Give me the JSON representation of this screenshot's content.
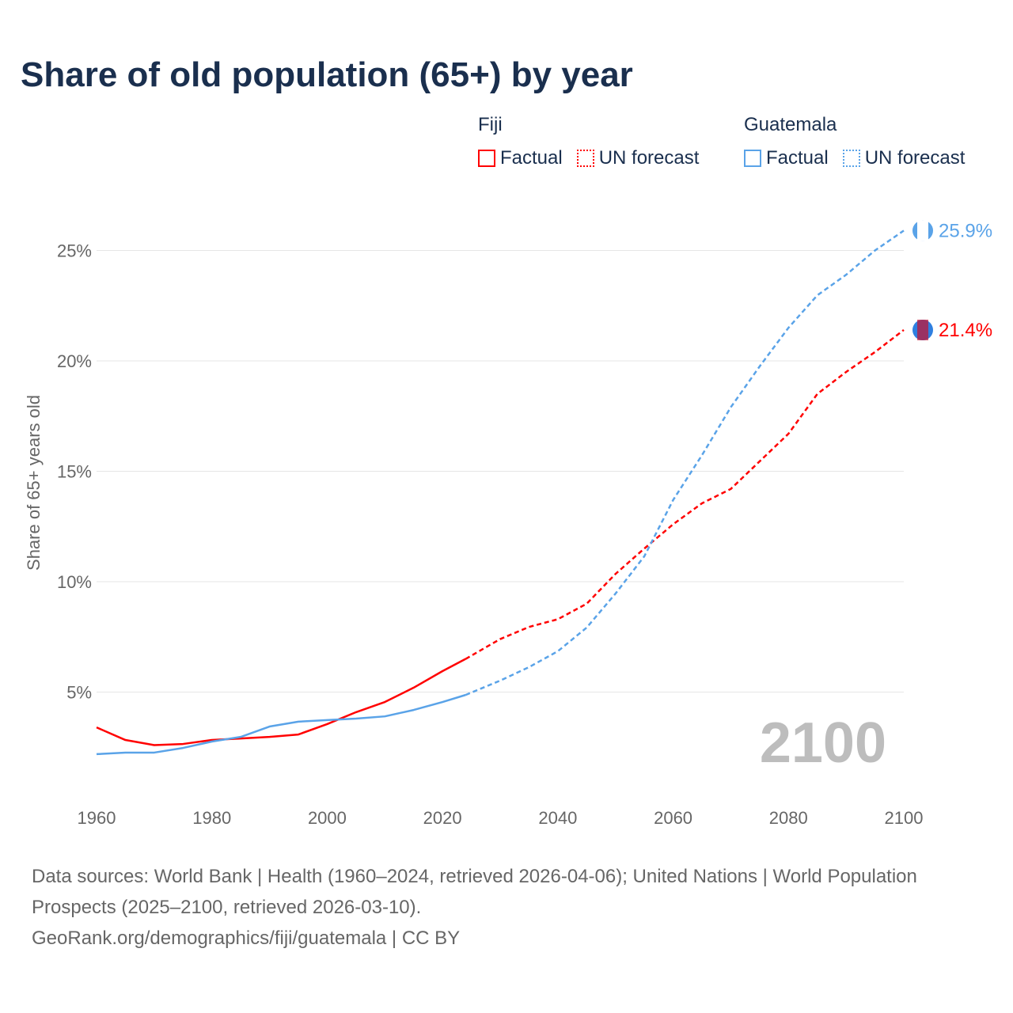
{
  "title": "Share of old population (65+) by year",
  "legend": [
    {
      "country": "Fiji",
      "color": "#ff0000",
      "factual_label": "Factual",
      "forecast_label": "UN forecast"
    },
    {
      "country": "Guatemala",
      "color": "#5aa3e8",
      "factual_label": "Factual",
      "forecast_label": "UN forecast"
    }
  ],
  "chart_data": {
    "type": "line",
    "title": "Share of old population (65+) by year",
    "xlabel": "",
    "ylabel": "Share of 65+ years old",
    "xlim": [
      1960,
      2100
    ],
    "ylim": [
      0,
      27
    ],
    "x_ticks": [
      "1960",
      "1980",
      "2000",
      "2020",
      "2040",
      "2060",
      "2080",
      "2100"
    ],
    "y_ticks": [
      "5%",
      "10%",
      "15%",
      "20%",
      "25%"
    ],
    "grid": "horizontal",
    "year_watermark": "2100",
    "forecast_start": 2024,
    "x": [
      1960,
      1965,
      1970,
      1975,
      1980,
      1985,
      1990,
      1995,
      2000,
      2005,
      2010,
      2015,
      2020,
      2024,
      2030,
      2035,
      2040,
      2045,
      2050,
      2055,
      2060,
      2065,
      2070,
      2075,
      2080,
      2085,
      2090,
      2095,
      2100
    ],
    "series": [
      {
        "name": "Fiji",
        "color": "#ff0000",
        "end_label": "21.4%",
        "values": [
          3.4,
          2.83,
          2.6,
          2.65,
          2.83,
          2.9,
          2.97,
          3.08,
          3.55,
          4.09,
          4.55,
          5.2,
          5.95,
          6.5,
          7.4,
          7.95,
          8.3,
          9.0,
          10.35,
          11.5,
          12.6,
          13.55,
          14.2,
          15.45,
          16.7,
          18.5,
          19.5,
          20.4,
          21.4
        ]
      },
      {
        "name": "Guatemala",
        "color": "#5aa3e8",
        "end_label": "25.9%",
        "values": [
          2.19,
          2.26,
          2.26,
          2.47,
          2.76,
          2.97,
          3.44,
          3.66,
          3.73,
          3.8,
          3.9,
          4.19,
          4.55,
          4.87,
          5.52,
          6.13,
          6.85,
          7.92,
          9.46,
          11.15,
          13.7,
          15.73,
          17.9,
          19.75,
          21.5,
          22.97,
          23.9,
          25.0,
          25.9
        ]
      }
    ]
  },
  "sources": {
    "line1": "Data sources: World Bank | Health (1960–2024, retrieved 2026-04-06); United Nations | World Population Prospects (2025–2100, retrieved 2026-03-10).",
    "line2": "GeoRank.org/demographics/fiji/guatemala | CC BY"
  }
}
